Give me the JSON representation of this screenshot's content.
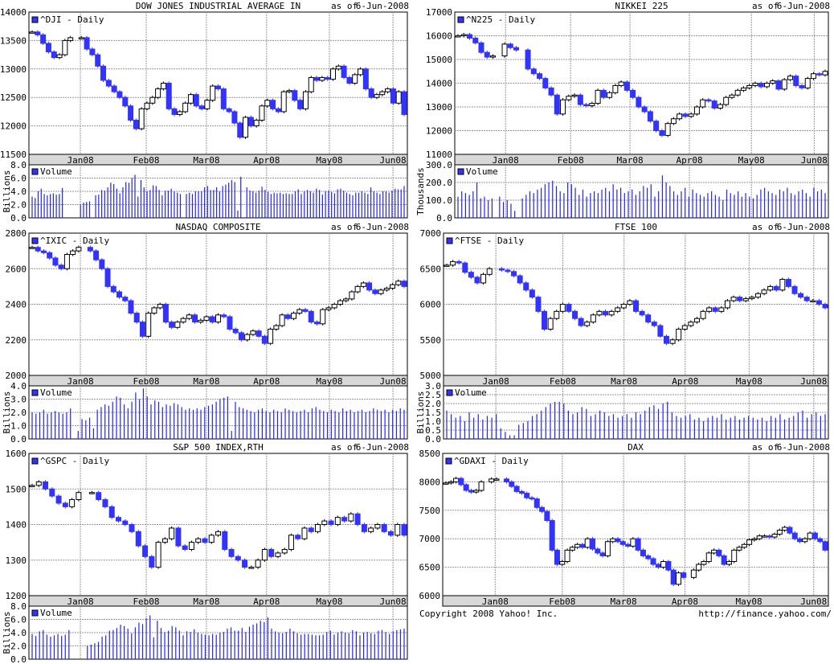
{
  "colors": {
    "down": "#3333ff",
    "up": "#ffffff",
    "grid": "#999999",
    "frame": "#000000",
    "volume": "#2222ff"
  },
  "months": [
    "Jan08",
    "Feb08",
    "Mar08",
    "Apr08",
    "May08",
    "Jun08"
  ],
  "as_of_label": "as of",
  "as_of_date": "6-Jun-2008",
  "volume_label": "Volume",
  "footer": {
    "copyright": "Copyright 2008 Yahoo! Inc.",
    "url": "http://finance.yahoo.com/"
  },
  "chart_data": [
    {
      "type": "candlestick",
      "title": "DOW JONES INDUSTRIAL AVERAGE IN",
      "legend": "^DJI - Daily",
      "ylim": [
        11500,
        14000
      ],
      "yticks": [
        11500,
        12000,
        12500,
        13000,
        13500,
        14000
      ],
      "close": [
        13650,
        13600,
        13450,
        13300,
        13200,
        13250,
        13500,
        13550,
        null,
        13550,
        13350,
        13250,
        13050,
        12800,
        12700,
        12600,
        12500,
        12350,
        12100,
        11950,
        12300,
        12400,
        12500,
        12650,
        12750,
        12300,
        12200,
        12250,
        12400,
        12550,
        12350,
        12300,
        12450,
        12700,
        12650,
        12300,
        12250,
        12050,
        11800,
        12150,
        12000,
        12100,
        12350,
        12450,
        12300,
        12250,
        12600,
        12620,
        12450,
        12300,
        12600,
        12850,
        12800,
        12850,
        12820,
        13000,
        13050,
        12850,
        12750,
        12900,
        13000,
        12650,
        12500,
        12550,
        12600,
        12650,
        12400,
        12600,
        12200
      ],
      "volume_unit": "Billions",
      "volume_ylim": [
        0,
        8
      ],
      "volume_ticks": [
        "0.0",
        "2.0",
        "4.0",
        "6.0",
        "8.0"
      ],
      "volume": [
        3.2,
        3.0,
        4.0,
        4.4,
        3.6,
        3.4,
        3.6,
        3.7,
        3.5,
        3.6,
        4.5,
        0,
        0,
        0,
        0,
        0,
        2.0,
        2.3,
        2.4,
        2.5,
        0,
        3.4,
        3.5,
        4.2,
        4.1,
        4.6,
        5.3,
        5.1,
        4.4,
        3.7,
        4.6,
        5.4,
        5.3,
        6.0,
        6.5,
        3.2,
        5.7,
        4.6,
        4.0,
        4.2,
        4.9,
        4.8,
        4.2,
        3.4,
        4.1,
        4.1,
        4.4,
        4.0,
        3.8,
        3.6,
        0,
        3.6,
        3.8,
        3.6,
        4.0,
        4.0,
        4.0,
        4.6,
        4.8,
        4.2,
        4.2,
        4.6,
        4.0,
        4.8,
        5.0,
        5.3,
        5.7,
        5.4,
        1.1,
        6.2,
        0,
        4.6,
        4.1,
        4.0,
        3.8,
        4.1,
        4.7,
        4.2,
        3.9,
        3.6,
        3.8,
        3.7,
        3.8,
        3.6,
        3.7,
        3.6,
        3.6,
        4.0,
        4.3,
        3.6,
        4.0,
        4.2,
        4.0,
        3.8,
        4.4,
        4.2,
        3.5,
        4.0,
        4.1,
        3.9,
        3.7,
        4.3,
        4.4,
        4.1,
        3.8,
        3.6,
        3.4,
        3.8,
        3.8,
        4.0,
        3.8,
        3.6,
        4.6,
        4.0,
        3.8,
        3.6,
        4.0,
        4.0,
        3.8,
        4.1,
        4.4,
        4.3,
        4.3,
        4.8
      ]
    },
    {
      "type": "candlestick",
      "title": "NIKKEI 225",
      "legend": "^N225 - Daily",
      "ylim": [
        11000,
        17000
      ],
      "yticks": [
        11000,
        12000,
        13000,
        14000,
        15000,
        16000,
        17000
      ],
      "close": [
        16000,
        16050,
        15900,
        15700,
        15300,
        15100,
        15150,
        null,
        15650,
        15500,
        15400,
        null,
        14600,
        14400,
        14200,
        13800,
        13500,
        12700,
        13300,
        13450,
        13500,
        13100,
        13050,
        13150,
        13700,
        13400,
        13600,
        13900,
        14050,
        13700,
        13400,
        13000,
        12800,
        12400,
        12000,
        11800,
        12300,
        12500,
        12700,
        12600,
        12700,
        13000,
        13300,
        13250,
        12950,
        13100,
        13400,
        13500,
        13700,
        13800,
        13900,
        14000,
        13850,
        14000,
        14100,
        13750,
        14150,
        14300,
        13900,
        13800,
        14200,
        14400,
        14350,
        14500
      ],
      "volume_unit": "Thousands",
      "volume_ylim": [
        0,
        300
      ],
      "volume_ticks": [
        "0.0",
        "100.0",
        "200.0",
        "300.0"
      ],
      "volume": [
        120,
        150,
        140,
        130,
        150,
        200,
        110,
        120,
        100,
        110,
        0,
        120,
        90,
        100,
        80,
        40,
        0,
        110,
        130,
        150,
        140,
        160,
        170,
        190,
        200,
        210,
        180,
        150,
        140,
        200,
        190,
        170,
        130,
        160,
        120,
        140,
        150,
        140,
        160,
        170,
        150,
        190,
        160,
        170,
        140,
        150,
        160,
        130,
        150,
        180,
        170,
        190,
        120,
        150,
        240,
        200,
        180,
        150,
        130,
        150,
        170,
        120,
        160,
        140,
        130,
        120,
        140,
        150,
        130,
        120,
        100,
        160,
        140,
        130,
        150,
        120,
        140,
        120,
        110,
        130,
        160,
        170,
        150,
        140,
        130,
        160,
        150,
        170,
        140,
        130,
        150,
        160,
        140,
        120,
        170,
        150,
        160,
        140
      ],
      "note": "volume in thousands"
    },
    {
      "type": "candlestick",
      "title": "NASDAQ COMPOSITE",
      "legend": "^IXIC - Daily",
      "ylim": [
        2000,
        2800
      ],
      "yticks": [
        2000,
        2200,
        2400,
        2600,
        2800
      ],
      "close": [
        2720,
        2700,
        2690,
        2660,
        2620,
        2600,
        2680,
        2700,
        2720,
        null,
        2700,
        2650,
        2600,
        2500,
        2470,
        2440,
        2420,
        2350,
        2300,
        2220,
        2350,
        2380,
        2400,
        2300,
        2270,
        2300,
        2320,
        2340,
        2300,
        2310,
        2330,
        2300,
        2340,
        2330,
        2260,
        2240,
        2200,
        2230,
        2250,
        2220,
        2180,
        2260,
        2280,
        2340,
        2320,
        2350,
        2370,
        2360,
        2300,
        2290,
        2370,
        2380,
        2400,
        2420,
        2430,
        2470,
        2500,
        2520,
        2480,
        2460,
        2480,
        2490,
        2510,
        2530,
        2500
      ],
      "volume_unit": "Billions",
      "volume_ylim": [
        0,
        4
      ],
      "volume_ticks": [
        "0.0",
        "1.0",
        "2.0",
        "3.0",
        "4.0"
      ],
      "volume": [
        2.0,
        1.9,
        2.0,
        2.2,
        1.9,
        2.0,
        2.1,
        2.0,
        1.9,
        2.0,
        2.3,
        0,
        0.6,
        1.5,
        1.4,
        1.6,
        0.8,
        2.2,
        2.4,
        2.6,
        2.5,
        2.8,
        3.2,
        3.1,
        2.6,
        2.3,
        2.8,
        3.5,
        3.0,
        3.8,
        3.2,
        2.6,
        2.9,
        2.8,
        2.4,
        2.6,
        2.5,
        2.7,
        2.6,
        2.4,
        2.2,
        2.3,
        2.2,
        2.3,
        2.2,
        2.4,
        2.5,
        2.6,
        2.8,
        3.0,
        3.1,
        3.2,
        0.6,
        2.8,
        2.4,
        2.3,
        2.2,
        2.1,
        2.0,
        2.2,
        2.3,
        2.1,
        2.0,
        2.2,
        2.1,
        2.0,
        2.3,
        2.2,
        2.1,
        2.0,
        2.1,
        2.2,
        2.0,
        2.3,
        2.4,
        2.2,
        2.1,
        2.0,
        2.2,
        2.1,
        2.0,
        2.3,
        2.1,
        2.2,
        2.0,
        2.1,
        2.2,
        2.0,
        2.1,
        2.3,
        2.2,
        2.1,
        2.2,
        2.0,
        2.2,
        2.1,
        2.3,
        2.2
      ]
    },
    {
      "type": "candlestick",
      "title": "FTSE 100",
      "legend": "^FTSE - Daily",
      "ylim": [
        5000,
        7000
      ],
      "yticks": [
        5000,
        5500,
        6000,
        6500,
        7000
      ],
      "close": [
        6550,
        6600,
        6580,
        6450,
        6380,
        6300,
        6420,
        6500,
        null,
        6480,
        6460,
        6400,
        6300,
        6200,
        6100,
        5900,
        5650,
        5800,
        5900,
        6000,
        5900,
        5800,
        5700,
        5750,
        5850,
        5900,
        5850,
        5900,
        5950,
        6000,
        6050,
        5900,
        5850,
        5750,
        5700,
        5550,
        5450,
        5500,
        5650,
        5700,
        5750,
        5800,
        5900,
        5950,
        5900,
        5950,
        6050,
        6100,
        6050,
        6080,
        6100,
        6150,
        6200,
        6250,
        6200,
        6350,
        6250,
        6150,
        6100,
        6050,
        6050,
        6000,
        5950
      ],
      "volume_unit": "Billions",
      "volume_ylim": [
        0,
        3
      ],
      "volume_ticks": [
        "0.0",
        "0.5",
        "1.0",
        "1.5",
        "2.0",
        "2.5",
        "3.0"
      ],
      "volume": [
        1.6,
        1.4,
        1.2,
        1.3,
        1.0,
        1.5,
        1.2,
        1.4,
        1.1,
        1.3,
        1.2,
        1.4,
        0.6,
        0.4,
        0.2,
        0.2,
        0.8,
        0.9,
        1.0,
        1.3,
        1.4,
        1.6,
        1.8,
        2.0,
        2.1,
        2.1,
        2.0,
        1.6,
        1.4,
        1.5,
        1.8,
        1.7,
        1.3,
        1.4,
        1.6,
        1.5,
        1.3,
        1.4,
        1.2,
        1.3,
        1.4,
        1.2,
        1.5,
        1.4,
        1.6,
        1.8,
        1.9,
        1.7,
        2.0,
        2.1,
        1.5,
        1.3,
        1.2,
        1.3,
        1.4,
        1.1,
        1.2,
        1.0,
        1.2,
        1.3,
        1.2,
        1.4,
        1.1,
        1.2,
        1.3,
        1.1,
        1.2,
        1.3,
        1.2,
        1.1,
        1.2,
        1.0,
        1.3,
        1.2,
        1.4,
        1.1,
        1.2,
        1.3,
        1.5,
        1.6,
        1.2,
        1.4,
        1.5,
        1.3,
        1.4
      ]
    },
    {
      "type": "candlestick",
      "title": "S&P 500 INDEX,RTH",
      "legend": "^GSPC - Daily",
      "ylim": [
        1200,
        1600
      ],
      "yticks": [
        1200,
        1300,
        1400,
        1500,
        1600
      ],
      "close": [
        1510,
        1520,
        1500,
        1480,
        1460,
        1450,
        1470,
        1490,
        null,
        1490,
        1470,
        1450,
        1420,
        1410,
        1400,
        1380,
        1340,
        1310,
        1280,
        1350,
        1360,
        1390,
        1340,
        1330,
        1350,
        1360,
        1350,
        1370,
        1380,
        1330,
        1310,
        1300,
        1280,
        1280,
        1300,
        1330,
        1310,
        1320,
        1330,
        1370,
        1360,
        1390,
        1380,
        1400,
        1410,
        1400,
        1420,
        1410,
        1430,
        1400,
        1380,
        1390,
        1400,
        1380,
        1370,
        1400,
        1370
      ],
      "volume_unit": "Billions",
      "volume_ylim": [
        0,
        8
      ],
      "volume_ticks": [
        "0.0",
        "2.0",
        "4.0",
        "6.0",
        "8.0"
      ],
      "volume": [
        3.8,
        3.5,
        4.2,
        4.4,
        3.7,
        3.4,
        3.6,
        3.8,
        3.5,
        3.7,
        4.4,
        0,
        0,
        0,
        0,
        2.0,
        2.2,
        2.4,
        2.6,
        3.4,
        3.6,
        4.3,
        4.4,
        4.7,
        5.2,
        5.0,
        4.6,
        3.9,
        4.8,
        5.5,
        5.3,
        6.2,
        6.6,
        3.3,
        5.8,
        4.7,
        4.1,
        4.3,
        5.0,
        4.8,
        4.3,
        3.6,
        4.2,
        4.1,
        4.5,
        4.0,
        3.8,
        3.7,
        3.6,
        3.8,
        3.7,
        4.0,
        4.1,
        4.6,
        4.8,
        4.3,
        4.3,
        4.7,
        4.1,
        4.9,
        5.2,
        5.4,
        5.8,
        5.6,
        6.3,
        4.6,
        4.2,
        4.0,
        3.9,
        4.1,
        4.6,
        4.2,
        3.9,
        3.7,
        3.8,
        3.8,
        3.7,
        3.6,
        3.6,
        3.7,
        4.1,
        4.3,
        3.7,
        4.0,
        4.2,
        4.0,
        3.9,
        4.4,
        4.2,
        3.6,
        4.0,
        4.1,
        3.9,
        3.8,
        4.3,
        4.4,
        4.1,
        3.8,
        4.2,
        4.4,
        4.5,
        4.6
      ]
    },
    {
      "type": "candlestick",
      "title": "DAX",
      "legend": "^GDAXI - Daily",
      "ylim": [
        6000,
        8500
      ],
      "yticks": [
        6000,
        6500,
        7000,
        7500,
        8000,
        8500
      ],
      "close": [
        7980,
        8000,
        8060,
        7950,
        7850,
        7820,
        7850,
        8000,
        null,
        8050,
        8050,
        null,
        8000,
        7920,
        7830,
        7800,
        7720,
        7700,
        7550,
        7480,
        7320,
        6800,
        6550,
        6600,
        6800,
        6850,
        6900,
        6850,
        7000,
        6820,
        6750,
        6700,
        6950,
        7000,
        6950,
        6900,
        6870,
        7000,
        6800,
        6700,
        6650,
        6550,
        6500,
        6600,
        6450,
        6200,
        6400,
        6320,
        null,
        6450,
        6550,
        6600,
        6750,
        6800,
        6700,
        6550,
        6600,
        6800,
        6850,
        6900,
        6980,
        7000,
        7050,
        7050,
        7030,
        7080,
        7150,
        7200,
        7100,
        7000,
        6950,
        7000,
        7100,
        7000,
        6950,
        6800
      ]
    }
  ]
}
